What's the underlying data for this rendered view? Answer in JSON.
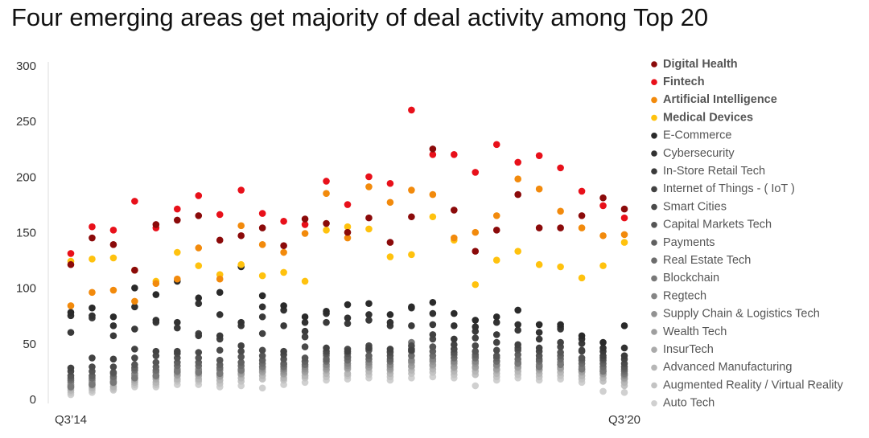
{
  "chart_data": {
    "type": "scatter",
    "title": "Four emerging areas get majority of deal activity among Top 20",
    "categories": [
      "Q3’14",
      null,
      null,
      null,
      null,
      null,
      null,
      null,
      null,
      null,
      null,
      null,
      null,
      null,
      null,
      null,
      null,
      null,
      null,
      null,
      null,
      null,
      null,
      null,
      null,
      null,
      "Q3’20"
    ],
    "ylim": [
      0,
      300
    ],
    "yticks": [
      0,
      50,
      100,
      150,
      200,
      250,
      300
    ],
    "series": [
      {
        "name": "Digital Health",
        "color": "#8b0a0a",
        "bold": true,
        "values": [
          122,
          146,
          140,
          117,
          158,
          162,
          166,
          144,
          148,
          155,
          139,
          163,
          159,
          151,
          164,
          142,
          165,
          226,
          171,
          134,
          153,
          185,
          155,
          155,
          166,
          182,
          172
        ]
      },
      {
        "name": "Fintech",
        "color": "#e8101a",
        "bold": true,
        "values": [
          132,
          156,
          153,
          179,
          155,
          172,
          184,
          167,
          189,
          168,
          161,
          158,
          197,
          176,
          201,
          195,
          261,
          221,
          221,
          205,
          230,
          214,
          220,
          209,
          188,
          175,
          164
        ]
      },
      {
        "name": "Artificial Intelligence",
        "color": "#f28a0c",
        "bold": true,
        "values": [
          85,
          97,
          99,
          89,
          105,
          109,
          137,
          109,
          157,
          140,
          133,
          150,
          186,
          146,
          192,
          178,
          189,
          185,
          146,
          151,
          166,
          199,
          190,
          170,
          155,
          148,
          149
        ]
      },
      {
        "name": "Medical Devices",
        "color": "#ffc20e",
        "bold": true,
        "values": [
          125,
          127,
          128,
          117,
          107,
          133,
          121,
          113,
          122,
          112,
          115,
          107,
          153,
          156,
          154,
          129,
          131,
          165,
          144,
          104,
          126,
          134,
          122,
          120,
          110,
          121,
          142
        ]
      },
      {
        "name": "E-Commerce",
        "color": "#2a2a2a",
        "values": [
          79,
          83,
          75,
          101,
          95,
          107,
          92,
          97,
          120,
          94,
          85,
          75,
          80,
          86,
          87,
          77,
          84,
          88,
          78,
          72,
          75,
          81,
          68,
          68,
          58,
          52,
          67
        ]
      },
      {
        "name": "Cybersecurity",
        "color": "#323232",
        "values": [
          76,
          76,
          67,
          84,
          72,
          70,
          87,
          77,
          70,
          84,
          81,
          70,
          78,
          74,
          77,
          70,
          83,
          78,
          67,
          66,
          70,
          68,
          61,
          66,
          55,
          47,
          47
        ]
      },
      {
        "name": "In-Store Retail Tech",
        "color": "#3a3a3a",
        "values": [
          61,
          74,
          58,
          64,
          70,
          65,
          58,
          58,
          67,
          75,
          67,
          62,
          70,
          69,
          72,
          67,
          67,
          68,
          55,
          62,
          59,
          63,
          55,
          64,
          51,
          44,
          40
        ]
      },
      {
        "name": "Internet of Things - ( IoT )",
        "color": "#424242",
        "values": [
          29,
          38,
          37,
          46,
          44,
          44,
          60,
          55,
          49,
          60,
          44,
          57,
          47,
          44,
          47,
          46,
          45,
          59,
          50,
          56,
          52,
          50,
          47,
          52,
          45,
          40,
          37
        ]
      },
      {
        "name": "Smart Cities",
        "color": "#4a4a4a",
        "values": [
          26,
          30,
          30,
          38,
          40,
          42,
          43,
          45,
          44,
          45,
          41,
          48,
          44,
          46,
          49,
          43,
          49,
          55,
          46,
          49,
          45,
          47,
          44,
          48,
          44,
          38,
          33
        ]
      },
      {
        "name": "Capital Markets Tech",
        "color": "#555555",
        "values": [
          22,
          26,
          25,
          32,
          34,
          38,
          38,
          36,
          39,
          40,
          37,
          38,
          42,
          42,
          45,
          40,
          46,
          48,
          43,
          44,
          40,
          45,
          40,
          43,
          38,
          36,
          30
        ]
      },
      {
        "name": "Payments",
        "color": "#606060",
        "values": [
          20,
          22,
          24,
          29,
          30,
          34,
          34,
          32,
          34,
          36,
          33,
          35,
          37,
          39,
          40,
          37,
          44,
          44,
          41,
          41,
          38,
          41,
          37,
          40,
          36,
          33,
          28
        ]
      },
      {
        "name": "Real Estate Tech",
        "color": "#6c6c6c",
        "values": [
          18,
          20,
          21,
          27,
          27,
          31,
          31,
          29,
          31,
          33,
          30,
          32,
          35,
          36,
          37,
          35,
          40,
          40,
          38,
          38,
          35,
          37,
          35,
          37,
          33,
          30,
          26
        ]
      },
      {
        "name": "Blockchain",
        "color": "#787878",
        "values": [
          12,
          14,
          16,
          20,
          22,
          26,
          25,
          24,
          27,
          30,
          32,
          35,
          40,
          38,
          46,
          44,
          52,
          48,
          46,
          39,
          35,
          33,
          30,
          32,
          28,
          26,
          24
        ]
      },
      {
        "name": "Regtech",
        "color": "#858585",
        "values": [
          16,
          18,
          19,
          24,
          25,
          28,
          28,
          27,
          28,
          30,
          28,
          30,
          32,
          33,
          34,
          32,
          36,
          37,
          35,
          35,
          32,
          34,
          32,
          34,
          30,
          28,
          23
        ]
      },
      {
        "name": "Supply Chain & Logistics Tech",
        "color": "#929292",
        "values": [
          14,
          16,
          17,
          22,
          22,
          25,
          26,
          24,
          26,
          28,
          26,
          28,
          30,
          31,
          32,
          30,
          34,
          35,
          33,
          33,
          31,
          33,
          31,
          32,
          28,
          26,
          22
        ]
      },
      {
        "name": "Wealth Tech",
        "color": "#9e9e9e",
        "values": [
          13,
          15,
          16,
          20,
          21,
          23,
          24,
          22,
          24,
          26,
          24,
          26,
          28,
          29,
          30,
          28,
          31,
          32,
          30,
          30,
          28,
          30,
          28,
          29,
          26,
          24,
          20
        ]
      },
      {
        "name": "InsurTech",
        "color": "#aaaaaa",
        "values": [
          11,
          13,
          15,
          18,
          19,
          22,
          22,
          21,
          23,
          25,
          23,
          25,
          27,
          28,
          29,
          27,
          30,
          31,
          29,
          29,
          27,
          29,
          27,
          28,
          25,
          23,
          19
        ]
      },
      {
        "name": "Advanced Manufacturing",
        "color": "#b6b6b6",
        "values": [
          9,
          11,
          12,
          16,
          16,
          19,
          19,
          18,
          20,
          22,
          20,
          22,
          24,
          24,
          26,
          24,
          27,
          28,
          26,
          26,
          24,
          26,
          24,
          25,
          22,
          20,
          16
        ]
      },
      {
        "name": "Augmented Reality / Virtual Reality",
        "color": "#c3c3c3",
        "values": [
          7,
          9,
          10,
          14,
          14,
          17,
          17,
          15,
          17,
          19,
          18,
          20,
          21,
          22,
          23,
          21,
          24,
          25,
          23,
          23,
          21,
          23,
          21,
          22,
          19,
          17,
          13
        ]
      },
      {
        "name": "Auto Tech",
        "color": "#d0d0d0",
        "values": [
          5,
          7,
          9,
          12,
          12,
          14,
          14,
          12,
          13,
          11,
          14,
          16,
          18,
          19,
          20,
          18,
          20,
          21,
          20,
          13,
          18,
          20,
          18,
          19,
          16,
          8,
          7
        ]
      }
    ]
  }
}
